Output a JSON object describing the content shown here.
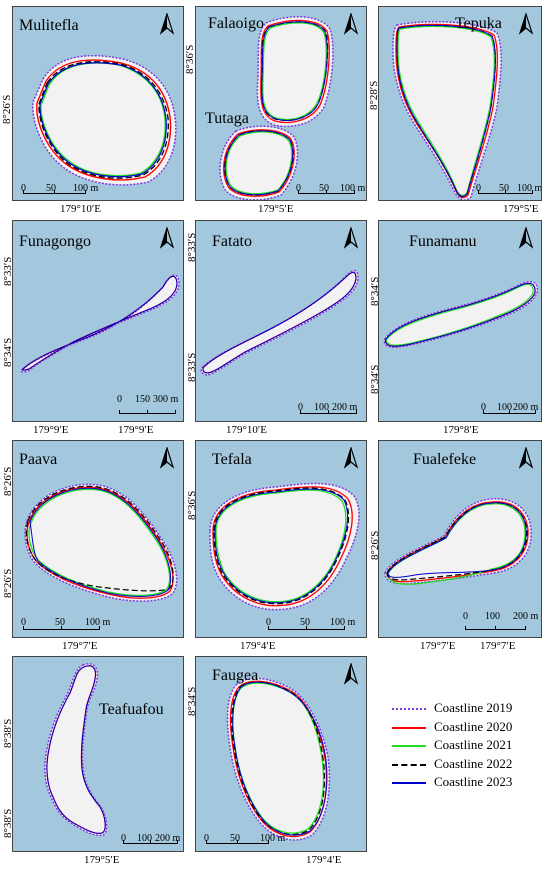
{
  "legend": [
    {
      "label": "Coastline 2019",
      "color": "#7a3ce0",
      "style": "dotted"
    },
    {
      "label": "Coastline 2020",
      "color": "#ff0000",
      "style": "solid"
    },
    {
      "label": "Coastline 2021",
      "color": "#22dd22",
      "style": "solid"
    },
    {
      "label": "Coastline 2022",
      "color": "#000000",
      "style": "dashed"
    },
    {
      "label": "Coastline 2023",
      "color": "#0000cc",
      "style": "solid"
    }
  ],
  "panels": {
    "mulitefla": {
      "name": "Mulitefla",
      "lat": "8°26′S",
      "lon": "179°10′E",
      "scale": [
        "0",
        "50",
        "100 m"
      ]
    },
    "falaoigo": {
      "name": "Falaoigo",
      "name2": "Tutaga",
      "lat": "8°36′S",
      "lon": "179°5′E",
      "scale": [
        "0",
        "50",
        "100 m"
      ]
    },
    "tepuka": {
      "name": "Tepuka",
      "lat": "8°28′S",
      "lon": "179°5′E",
      "scale": [
        "0",
        "50",
        "100 m"
      ]
    },
    "funagongo": {
      "name": "Funagongo",
      "lat1": "8°33′S",
      "lat2": "8°34′S",
      "lon1": "179°9′E",
      "lon2": "179°9′E",
      "scale": [
        "0",
        "150",
        "300 m"
      ]
    },
    "fatato": {
      "name": "Fatato",
      "lat1": "8°33′S",
      "lat2": "8°33′S",
      "lon": "179°10′E",
      "scale": [
        "0",
        "100",
        "200 m"
      ]
    },
    "funamanu": {
      "name": "Funamanu",
      "lat1": "8°34′S",
      "lat2": "8°34′S",
      "lon": "179°8′E",
      "scale": [
        "0",
        "100",
        "200 m"
      ]
    },
    "paava": {
      "name": "Paava",
      "lat1": "8°26′S",
      "lat2": "8°26′S",
      "lon": "179°7′E",
      "scale": [
        "0",
        "50",
        "100 m"
      ]
    },
    "tefala": {
      "name": "Tefala",
      "lat": "8°36′S",
      "lon": "179°4′E",
      "scale": [
        "0",
        "50",
        "100 m"
      ]
    },
    "fualefeke": {
      "name": "Fualefeke",
      "lat": "8°26′S",
      "lon1": "179°7′E",
      "lon2": "179°7′E",
      "scale": [
        "0",
        "100",
        "200 m"
      ]
    },
    "teafuafou": {
      "name": "Teafuafou",
      "lat1": "8°38′S",
      "lat2": "8°38′S",
      "lon": "179°5′E",
      "scale": [
        "0",
        "100",
        "200 m"
      ]
    },
    "faugea": {
      "name": "Faugea",
      "lat": "8°34′S",
      "lon": "179°4′E",
      "scale": [
        "0",
        "50",
        "100 m"
      ]
    }
  }
}
